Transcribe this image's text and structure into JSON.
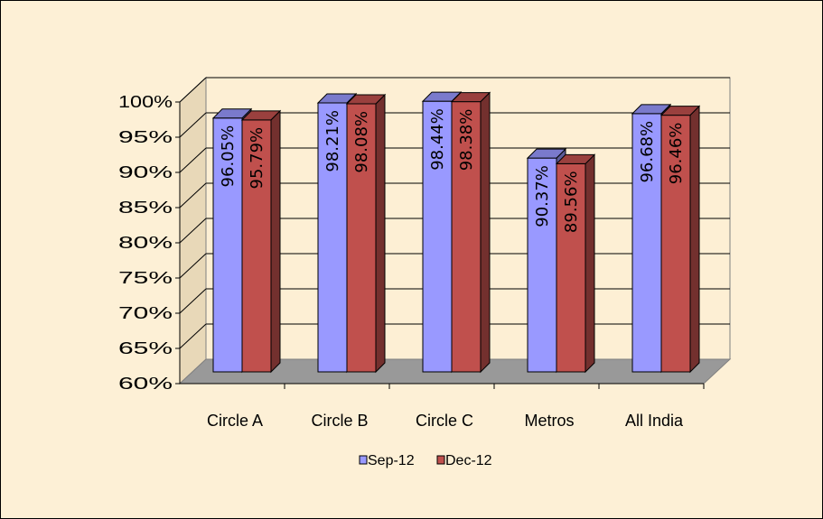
{
  "chart_data": {
    "type": "bar",
    "style": "3d-clustered-column",
    "categories": [
      "Circle A",
      "Circle B",
      "Circle C",
      "Metros",
      "All India"
    ],
    "series": [
      {
        "name": "Sep-12",
        "color": "#9999ff",
        "values": [
          96.05,
          98.21,
          98.44,
          90.37,
          96.68
        ],
        "labels": [
          "96.05%",
          "98.21%",
          "98.44%",
          "90.37%",
          "96.68%"
        ]
      },
      {
        "name": "Dec-12",
        "color": "#c0504d",
        "values": [
          95.79,
          98.08,
          98.38,
          89.56,
          96.46
        ],
        "labels": [
          "95.79%",
          "98.08%",
          "98.38%",
          "89.56%",
          "96.46%"
        ]
      }
    ],
    "y_ticks": [
      "60%",
      "65%",
      "70%",
      "75%",
      "80%",
      "85%",
      "90%",
      "95%",
      "100%"
    ],
    "ylim": [
      60,
      100
    ],
    "grid": true,
    "legend_position": "bottom",
    "wall_color": "#fdf0d6",
    "floor_color": "#999999"
  }
}
